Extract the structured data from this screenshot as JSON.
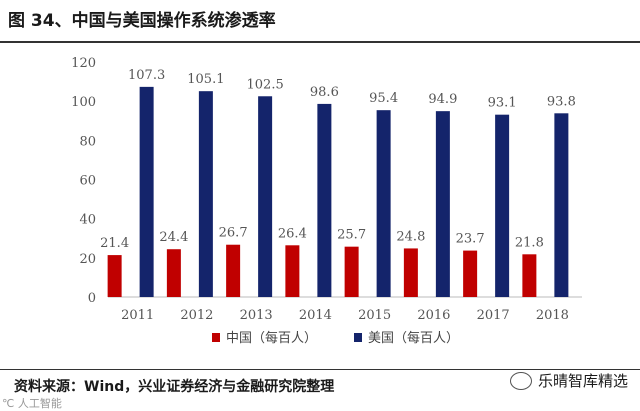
{
  "page": {
    "title": "图 34、中国与美国操作系统渗透率",
    "source": "资料来源：Wind，兴业证券经济与金融研究院整理",
    "watermark": "乐晴智库精选",
    "corner_mark": "℃ 人工智能"
  },
  "chart_data": {
    "type": "bar",
    "categories": [
      "2011",
      "2012",
      "2013",
      "2014",
      "2015",
      "2016",
      "2017",
      "2018"
    ],
    "series": [
      {
        "name": "中国（每百人）",
        "color": "#c00000",
        "values": [
          21.4,
          24.4,
          26.7,
          26.4,
          25.7,
          24.8,
          23.7,
          21.8
        ]
      },
      {
        "name": "美国（每百人）",
        "color": "#14246b",
        "values": [
          107.3,
          105.1,
          102.5,
          98.6,
          95.4,
          94.9,
          93.1,
          93.8
        ]
      }
    ],
    "ylim": [
      0,
      120
    ],
    "yticks": [
      0,
      20,
      40,
      60,
      80,
      100,
      120
    ],
    "legend_position": "bottom",
    "grid": false
  }
}
